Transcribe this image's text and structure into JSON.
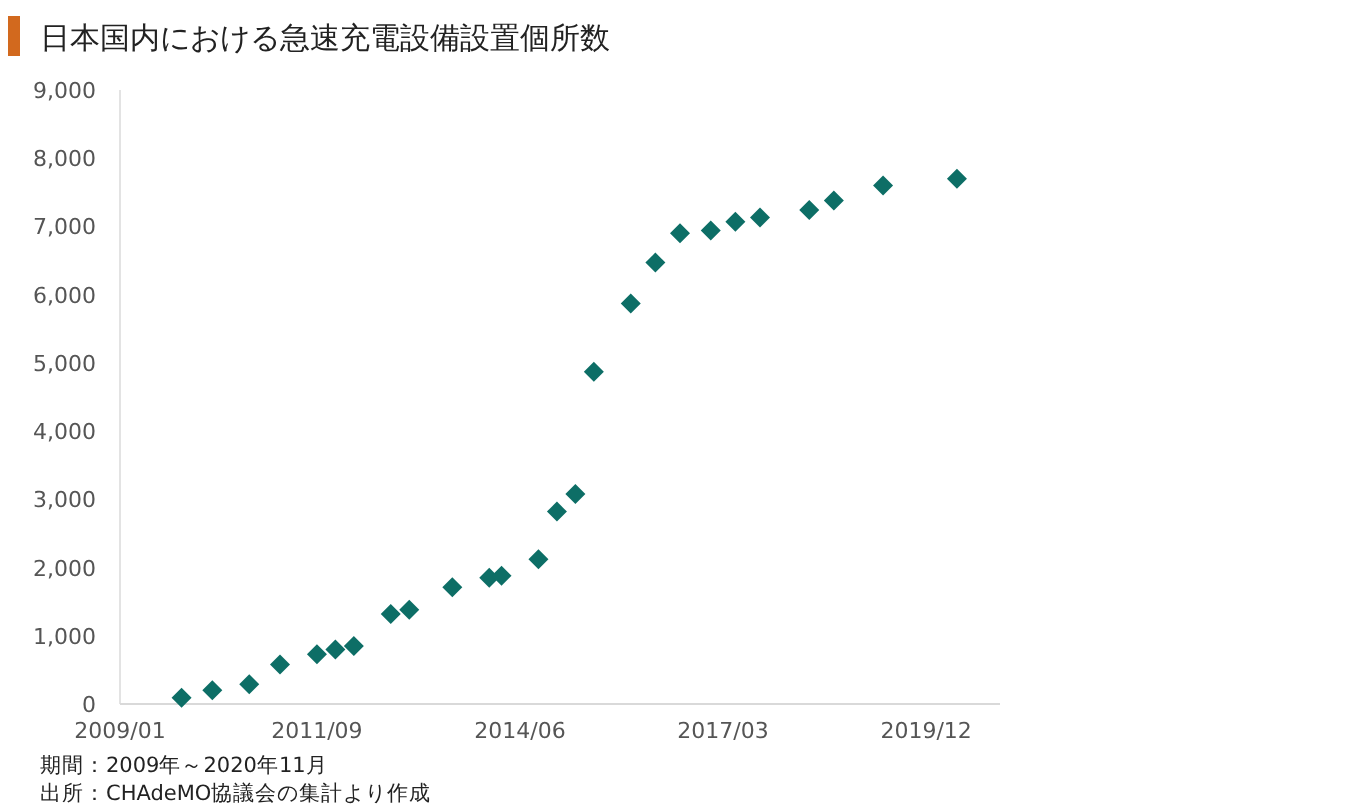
{
  "chart_data": {
    "type": "scatter",
    "title": "日本国内における急速充電設備設置個所数",
    "x": [
      "2009-11",
      "2010-04",
      "2010-10",
      "2011-03",
      "2011-09",
      "2011-12",
      "2012-03",
      "2012-09",
      "2012-12",
      "2013-07",
      "2014-01",
      "2014-03",
      "2014-09",
      "2014-12",
      "2015-03",
      "2015-06",
      "2015-12",
      "2016-04",
      "2016-08",
      "2017-01",
      "2017-05",
      "2017-09",
      "2018-05",
      "2018-09",
      "2019-05",
      "2020-05"
    ],
    "values": [
      90,
      200,
      290,
      580,
      730,
      800,
      850,
      1320,
      1380,
      1710,
      1850,
      1880,
      2120,
      2820,
      3080,
      4870,
      5870,
      6470,
      6900,
      6940,
      7070,
      7130,
      7240,
      7380,
      7600,
      7700
    ],
    "color": "#0d6e66",
    "marker": "diamond",
    "xlim": [
      "2009-01",
      "2020-12"
    ],
    "xticks": [
      {
        "value": "2009-01",
        "label": "2009/01"
      },
      {
        "value": "2011-09",
        "label": "2011/09"
      },
      {
        "value": "2014-06",
        "label": "2014/06"
      },
      {
        "value": "2017-03",
        "label": "2017/03"
      },
      {
        "value": "2019-12",
        "label": "2019/12"
      }
    ],
    "ylim": [
      0,
      9000
    ],
    "yticks": [
      0,
      {
        "value": 1000,
        "label": "1,000"
      },
      {
        "value": 2000,
        "label": "2,000"
      },
      {
        "value": 3000,
        "label": "3,000"
      },
      {
        "value": 4000,
        "label": "4,000"
      },
      {
        "value": 5000,
        "label": "5,000"
      },
      {
        "value": 6000,
        "label": "6,000"
      },
      {
        "value": 7000,
        "label": "7,000"
      },
      {
        "value": 8000,
        "label": "8,000"
      },
      {
        "value": 9000,
        "label": "9,000"
      }
    ],
    "grid": false,
    "annotations": [
      "期間：2009年～2020年11月",
      "出所：CHAdeMO協議会の集計より作成"
    ]
  }
}
